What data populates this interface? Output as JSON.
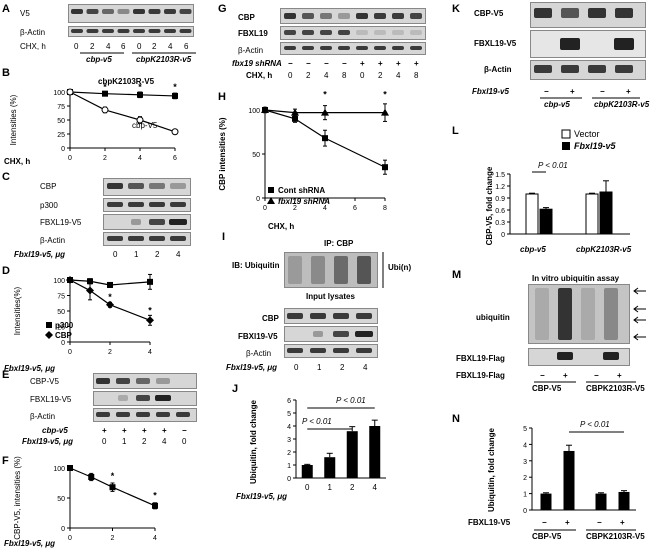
{
  "panels": {
    "A": {
      "letter": "A",
      "blots": [
        "V5",
        "β-Actin"
      ],
      "cond_prefix": "CHX, h",
      "lanes": [
        "0",
        "2",
        "4",
        "6",
        "0",
        "2",
        "4",
        "6"
      ],
      "groups": [
        "cbp-v5",
        "cbpK2103R-v5"
      ]
    },
    "B": {
      "letter": "B",
      "ylabel": "Intensities (%)",
      "xlabel": "CHX, h",
      "series_labels": [
        "cbpK2103R-V5",
        "cbp-V5"
      ]
    },
    "C": {
      "letter": "C",
      "blots": [
        "CBP",
        "p300",
        "FBXL19-V5",
        "β-Actin"
      ],
      "cond_prefix": "Fbxl19-v5, μg",
      "lanes": [
        "0",
        "1",
        "2",
        "4"
      ]
    },
    "D": {
      "letter": "D",
      "ylabel": "Intensities(%)",
      "xlabel": "Fbxl19-v5, μg",
      "legend": [
        "p300",
        "CBP"
      ]
    },
    "E": {
      "letter": "E",
      "blots": [
        "CBP-V5",
        "FBXL19-V5",
        "β-Actin"
      ],
      "row1_label": "cbp-v5",
      "row1": [
        "+",
        "+",
        "+",
        "+",
        "−"
      ],
      "row2_label": "Fbxl19-v5, μg",
      "row2": [
        "0",
        "1",
        "2",
        "4",
        "0"
      ]
    },
    "F": {
      "letter": "F",
      "ylabel": "CBP-V5, intensities (%)",
      "xlabel": "Fbxl19-v5, μg"
    },
    "G": {
      "letter": "G",
      "blots": [
        "CBP",
        "FBXL19",
        "β-Actin"
      ],
      "row1_label": "fbx19 shRNA",
      "row1": [
        "−",
        "−",
        "−",
        "−",
        "+",
        "+",
        "+",
        "+"
      ],
      "row2_label": "CHX, h",
      "row2": [
        "0",
        "2",
        "4",
        "8",
        "0",
        "2",
        "4",
        "8"
      ]
    },
    "H": {
      "letter": "H",
      "ylabel": "CBP intensities (%)",
      "xlabel": "CHX, h",
      "legend": [
        "Cont shRNA",
        "fbxl19 shRNA"
      ]
    },
    "I": {
      "letter": "I",
      "ip_label": "IP: CBP",
      "ib_label": "IB: Ubiquitin",
      "ubi_label": "Ubi(n)",
      "input_label": "Input lysates",
      "blots": [
        "CBP",
        "FBXl19-V5",
        "β-Actin"
      ],
      "cond_prefix": "Fbxl19-v5, μg",
      "lanes": [
        "0",
        "1",
        "2",
        "4"
      ]
    },
    "J": {
      "letter": "J",
      "ylabel": "Ubiquitin, fold change",
      "xlabel": "Fbxl19-v5, μg",
      "sig1": "P < 0.01",
      "sig2": "P < 0.01"
    },
    "K": {
      "letter": "K",
      "blots": [
        "CBP-V5",
        "FBXL19-V5",
        "β-Actin"
      ],
      "row_label": "Fbxl19-v5",
      "row": [
        "−",
        "+",
        "−",
        "+"
      ],
      "groups": [
        "cbp-v5",
        "cbpK2103R-v5"
      ]
    },
    "L": {
      "letter": "L",
      "ylabel": "CBP-V5, fold change",
      "legend": [
        "Vector",
        "Fbxl19-v5"
      ],
      "sig": "P < 0.01",
      "groups": [
        "cbp-v5",
        "cbpK2103R-v5"
      ]
    },
    "M": {
      "letter": "M",
      "title": "In vitro ubiquitin assay",
      "ubi_label": "ubiquitin",
      "blot_label": "FBXL19-Flag",
      "row_label": "FBXL19-Flag",
      "row": [
        "−",
        "+",
        "−",
        "+"
      ],
      "groups": [
        "CBP-V5",
        "CBPK2103R-V5"
      ]
    },
    "N": {
      "letter": "N",
      "ylabel": "Ubiquitin, fold change",
      "sig": "P < 0.01",
      "row_label": "FBXL19-V5",
      "row": [
        "−",
        "+",
        "−",
        "+"
      ],
      "groups": [
        "CBP-V5",
        "CBPK2103R-V5"
      ]
    }
  },
  "chart_data": [
    {
      "id": "B",
      "type": "line",
      "x": [
        0,
        2,
        4,
        6
      ],
      "xlim": [
        0,
        6
      ],
      "ylim": [
        0,
        100
      ],
      "xticks": [
        0,
        2,
        4,
        6
      ],
      "yticks": [
        0,
        25,
        50,
        75,
        100
      ],
      "xlabel": "CHX, h",
      "ylabel": "Intensities (%)",
      "series": [
        {
          "name": "cbpK2103R-V5",
          "values": [
            100,
            97,
            95,
            93
          ],
          "err": [
            3,
            4,
            5,
            5
          ],
          "marker": "square-filled"
        },
        {
          "name": "cbp-V5",
          "values": [
            100,
            68,
            50,
            29
          ],
          "err": [
            3,
            5,
            6,
            4
          ],
          "marker": "circle-open"
        }
      ],
      "annotations": [
        "*",
        "*",
        "*"
      ]
    },
    {
      "id": "D",
      "type": "line",
      "x": [
        0,
        1,
        2,
        4
      ],
      "xlim": [
        0,
        4
      ],
      "ylim": [
        0,
        100
      ],
      "xticks": [
        0,
        2,
        4
      ],
      "yticks": [
        0,
        25,
        50,
        75,
        100
      ],
      "xlabel": "Fbxl19-v5, μg",
      "ylabel": "Intensities(%)",
      "legend_position": "bottom-left",
      "series": [
        {
          "name": "p300",
          "values": [
            100,
            98,
            92,
            97
          ],
          "err": [
            3,
            4,
            4,
            12
          ],
          "marker": "square-filled"
        },
        {
          "name": "CBP",
          "values": [
            100,
            83,
            60,
            35
          ],
          "err": [
            3,
            15,
            4,
            8
          ],
          "marker": "diamond-filled"
        }
      ],
      "annotations": [
        "*",
        "*"
      ]
    },
    {
      "id": "F",
      "type": "line",
      "x": [
        0,
        1,
        2,
        4
      ],
      "xlim": [
        0,
        4
      ],
      "ylim": [
        0,
        100
      ],
      "xticks": [
        0,
        2,
        4
      ],
      "yticks": [
        0,
        50,
        100
      ],
      "xlabel": "Fbxl19-v5, μg",
      "ylabel": "CBP-V5, intensities (%)",
      "series": [
        {
          "name": "",
          "values": [
            100,
            85,
            68,
            37
          ],
          "err": [
            3,
            6,
            7,
            5
          ],
          "marker": "square-filled"
        }
      ],
      "annotations": [
        "*",
        "*"
      ]
    },
    {
      "id": "H",
      "type": "line",
      "x": [
        0,
        2,
        4,
        8
      ],
      "xlim": [
        0,
        8
      ],
      "ylim": [
        0,
        100
      ],
      "xticks": [
        0,
        2,
        4,
        6,
        8
      ],
      "yticks": [
        0,
        50,
        100
      ],
      "xlabel": "CHX, h",
      "ylabel": "CBP intensities (%)",
      "legend_position": "bottom-left",
      "series": [
        {
          "name": "Cont shRNA",
          "values": [
            100,
            90,
            68,
            35
          ],
          "err": [
            3,
            4,
            9,
            8
          ],
          "marker": "square-filled"
        },
        {
          "name": "fbxl19 shRNA",
          "values": [
            100,
            97,
            97,
            97
          ],
          "err": [
            3,
            4,
            8,
            10
          ],
          "marker": "triangle-filled"
        }
      ],
      "annotations": [
        "*",
        "*"
      ]
    },
    {
      "id": "J",
      "type": "bar",
      "categories": [
        "0",
        "1",
        "2",
        "4"
      ],
      "values": [
        1.0,
        1.6,
        3.6,
        4.0
      ],
      "err": [
        0.05,
        0.3,
        0.35,
        0.45
      ],
      "ylim": [
        0,
        6
      ],
      "yticks": [
        0,
        1,
        2,
        3,
        4,
        5,
        6
      ],
      "xlabel": "Fbxl19-v5, μg",
      "ylabel": "Ubiquitin, fold change"
    },
    {
      "id": "L",
      "type": "bar",
      "categories": [
        "cbp-v5",
        "cbpK2103R-v5"
      ],
      "ylim": [
        0,
        1.5
      ],
      "yticks": [
        0,
        0.3,
        0.6,
        0.9,
        1.2,
        1.5
      ],
      "ylabel": "CBP-V5, fold change",
      "legend_position": "top",
      "series": [
        {
          "name": "Vector",
          "values": [
            1.0,
            1.0
          ],
          "err": [
            0.02,
            0.02
          ],
          "fill": "#ffffff"
        },
        {
          "name": "Fbxl19-v5",
          "values": [
            0.62,
            1.05
          ],
          "err": [
            0.04,
            0.28
          ],
          "fill": "#000000"
        }
      ]
    },
    {
      "id": "N",
      "type": "bar",
      "categories": [
        "CBP-V5 −",
        "CBP-V5 +",
        "CBPK2103R-V5 −",
        "CBPK2103R-V5 +"
      ],
      "values": [
        1.0,
        3.6,
        1.0,
        1.1
      ],
      "err": [
        0.05,
        0.35,
        0.05,
        0.08
      ],
      "ylim": [
        0,
        5
      ],
      "yticks": [
        0,
        1,
        2,
        3,
        4,
        5
      ],
      "ylabel": "Ubiquitin, fold change"
    }
  ]
}
